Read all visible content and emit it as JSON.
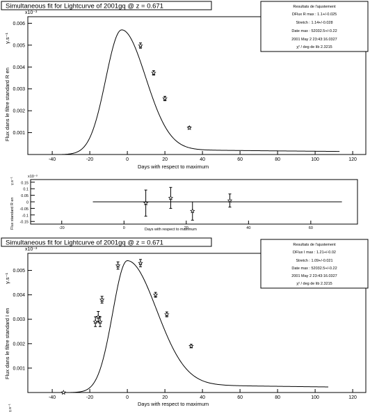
{
  "chart_data": [
    {
      "type": "scatter",
      "title": "Simultaneous fit for Lightcurve of 2001gq @ z = 0.671",
      "xlabel": "Days with respect to maximum",
      "ylabel": "Flux dans le filtre standard R en",
      "yunit": "γ.s⁻¹",
      "yexp": "x10⁻³",
      "xlim": [
        -53,
        127
      ],
      "ylim": [
        0,
        0.0063
      ],
      "xticks": [
        -40,
        -20,
        0,
        20,
        40,
        60,
        80,
        100,
        120
      ],
      "yticks": [
        {
          "v": 0.001,
          "label": "0.001"
        },
        {
          "v": 0.002,
          "label": "0.002"
        },
        {
          "v": 0.003,
          "label": "0.003"
        },
        {
          "v": 0.004,
          "label": "0.004"
        },
        {
          "v": 0.005,
          "label": "0.005"
        },
        {
          "v": 0.006,
          "label": "0.006"
        }
      ],
      "points": [
        {
          "x": 7,
          "y": 0.00498,
          "err": 0.00012
        },
        {
          "x": 14,
          "y": 0.00373,
          "err": 0.0001
        },
        {
          "x": 20,
          "y": 0.00256,
          "err": 0.0001
        },
        {
          "x": 33,
          "y": 0.00122,
          "err": 5e-05
        }
      ],
      "fit": {
        "t0": -3,
        "peak": 0.0057,
        "rise": 12,
        "decay": 18,
        "tail": 0.00025,
        "tail_tau": 40,
        "start": -37,
        "end": 113
      },
      "stats": {
        "heading": "Resultats de l'ajustement",
        "lines": [
          "DFlux R max : 1.1+/-0.025",
          "Stretch : 1.14+/-0.028",
          "Date max : 52032.5+/-0.22",
          "2001 May 2 23:43:16.0327",
          "χ² / deg de lib 2.3215"
        ]
      }
    },
    {
      "type": "scatter",
      "title": "",
      "xlabel": "Days with respect to maximum",
      "ylabel": "Flux standard R en",
      "yunit": "γ.s⁻¹",
      "yexp": "x10⁻³",
      "xlim": [
        -30,
        75
      ],
      "ylim": [
        -0.17,
        0.17
      ],
      "xticks": [
        -20,
        0,
        20,
        40,
        60
      ],
      "yticks": [
        {
          "v": -0.15,
          "label": "-0.15"
        },
        {
          "v": -0.1,
          "label": "-0.1"
        },
        {
          "v": -0.05,
          "label": "-0.05"
        },
        {
          "v": 0,
          "label": "0"
        },
        {
          "v": 0.05,
          "label": "0.05"
        },
        {
          "v": 0.1,
          "label": "0.1"
        },
        {
          "v": 0.15,
          "label": "0.15"
        }
      ],
      "points": [
        {
          "x": 7,
          "y": -0.01,
          "err": 0.1
        },
        {
          "x": 15,
          "y": 0.03,
          "err": 0.08
        },
        {
          "x": 22,
          "y": -0.07,
          "err": 0.07
        },
        {
          "x": 34,
          "y": 0.01,
          "err": 0.05
        }
      ]
    },
    {
      "type": "scatter",
      "title": "Simultaneous fit for Lightcurve of 2001gq @ z = 0.671",
      "xlabel": "Days with respect to maximum",
      "ylabel": "Flux dans le filtre standard I en",
      "yunit": "γ.s⁻¹",
      "yexp": "x10⁻³",
      "xlim": [
        -53,
        127
      ],
      "ylim": [
        0,
        0.0057
      ],
      "xticks": [
        -40,
        -20,
        0,
        20,
        40,
        60,
        80,
        100,
        120
      ],
      "yticks": [
        {
          "v": 0.001,
          "label": "0.001"
        },
        {
          "v": 0.002,
          "label": "0.002"
        },
        {
          "v": 0.003,
          "label": "0.003"
        },
        {
          "v": 0.004,
          "label": "0.004"
        },
        {
          "v": 0.005,
          "label": "0.005"
        }
      ],
      "points": [
        {
          "x": -34,
          "y": 0.0,
          "err": 2e-05
        },
        {
          "x": -17,
          "y": 0.0029,
          "err": 0.0002
        },
        {
          "x": -15.5,
          "y": 0.0031,
          "err": 0.00022
        },
        {
          "x": -14.5,
          "y": 0.0029,
          "err": 0.0002
        },
        {
          "x": -13.5,
          "y": 0.0038,
          "err": 0.00014
        },
        {
          "x": -5,
          "y": 0.0052,
          "err": 0.00015
        },
        {
          "x": 7,
          "y": 0.0053,
          "err": 0.00015
        },
        {
          "x": 15,
          "y": 0.004,
          "err": 0.0001
        },
        {
          "x": 21,
          "y": 0.0032,
          "err": 0.0001
        },
        {
          "x": 34,
          "y": 0.0019,
          "err": 7e-05
        }
      ],
      "fit": {
        "t0": 0,
        "peak": 0.0054,
        "rise": 11,
        "decay": 22,
        "tail": 0.00035,
        "tail_tau": 50,
        "start": -34,
        "end": 107
      },
      "stats": {
        "heading": "Resultats de l'ajustement",
        "lines": [
          "DFlux I max : 1.21+/-0.02",
          "Stretch : 1.09+/-0.021",
          "Date max : 52032.5+/-0.22",
          "2001 May 2 23:43:16.0327",
          "χ² / deg de lib 2.3215"
        ]
      }
    }
  ]
}
